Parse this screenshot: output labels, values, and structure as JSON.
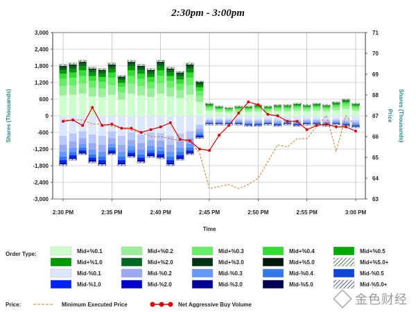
{
  "chart_data": {
    "type": "bar",
    "title": "2:30pm - 3:00pm",
    "xlabel": "Time",
    "ylabel_left": "Shares (Thousands)",
    "ylabel_right_price": "Price",
    "ylabel_right_shares": "Shares (Thousands)",
    "x_ticks": [
      "2:30 PM",
      "2:35 PM",
      "2:40 PM",
      "2:45 PM",
      "2:50 PM",
      "2:55 PM",
      "3:00 PM"
    ],
    "ylim_left": [
      -3000,
      3000
    ],
    "y_ticks_left": [
      "3,000",
      "2,400",
      "1,800",
      "1,200",
      "600",
      "0",
      "-600",
      "-1,200",
      "-1,800",
      "-2,400",
      "-3,000"
    ],
    "ylim_right": [
      63,
      71
    ],
    "y_ticks_right": [
      "71",
      "70",
      "69",
      "68",
      "67",
      "66",
      "65",
      "64",
      "63"
    ],
    "grid": true,
    "minutes": [
      0,
      1,
      2,
      3,
      4,
      5,
      6,
      7,
      8,
      9,
      10,
      11,
      12,
      13,
      14,
      15,
      16,
      17,
      18,
      19,
      20,
      21,
      22,
      23,
      24,
      25,
      26,
      27,
      28,
      29,
      30
    ],
    "buy_volume": [
      1850,
      1900,
      2000,
      1750,
      1700,
      1900,
      1450,
      2000,
      1850,
      1700,
      2000,
      1750,
      1600,
      1900,
      1250,
      450,
      350,
      300,
      350,
      350,
      400,
      350,
      400,
      400,
      450,
      400,
      450,
      400,
      500,
      600,
      450
    ],
    "sell_volume": [
      -1800,
      -1600,
      -1400,
      -1700,
      -1800,
      -1400,
      -1800,
      -1500,
      -1700,
      -1500,
      -1550,
      -1800,
      -1600,
      -1400,
      -800,
      -300,
      -300,
      -300,
      -300,
      -350,
      -350,
      -300,
      -350,
      -300,
      -350,
      -300,
      -300,
      -350,
      -300,
      -350,
      -400
    ],
    "net_aggressive_buy_volume": [
      -200,
      -150,
      -350,
      300,
      -350,
      -300,
      -450,
      -450,
      -600,
      -500,
      -400,
      -250,
      -850,
      -900,
      -1200,
      -1250,
      -700,
      -350,
      100,
      500,
      400,
      50,
      0,
      -200,
      -200,
      -500,
      -350,
      -300,
      -400,
      -400,
      -550
    ],
    "minimum_executed_price": [
      66.8,
      66.8,
      66.8,
      66.6,
      66.6,
      66.5,
      66.4,
      66.3,
      66.2,
      66.0,
      66.0,
      65.9,
      65.8,
      65.8,
      65.2,
      63.5,
      63.6,
      63.7,
      63.5,
      63.7,
      64.0,
      64.8,
      65.6,
      65.5,
      65.9,
      65.9,
      66.5,
      67.0,
      65.3,
      67.0,
      66.5
    ],
    "legend": {
      "order_type_label": "Order Type:",
      "order_types": [
        {
          "label": "Mid+%0.1",
          "color": "#ccffcc"
        },
        {
          "label": "Mid+%0.2",
          "color": "#99ee99"
        },
        {
          "label": "Mid+%0.3",
          "color": "#66ee66"
        },
        {
          "label": "Mid+%0.4",
          "color": "#33dd33"
        },
        {
          "label": "Mid+%0.5",
          "color": "#00aa00"
        },
        {
          "label": "Mid+%1.0",
          "color": "#009900"
        },
        {
          "label": "Mid+%2.0",
          "color": "#006622"
        },
        {
          "label": "Mid+%3.0",
          "color": "#003311"
        },
        {
          "label": "Mid+%5.0",
          "color": "#001a0a"
        },
        {
          "label": "Mid+%5.0+",
          "color": "hatch-green"
        },
        {
          "label": "Mid-%0.1",
          "color": "#dde6ff"
        },
        {
          "label": "Mid-%0.2",
          "color": "#99aaee"
        },
        {
          "label": "Mid-%0.3",
          "color": "#6699ff"
        },
        {
          "label": "Mid-%0.4",
          "color": "#3377ee"
        },
        {
          "label": "Mid-%0.5",
          "color": "#1144dd"
        },
        {
          "label": "Mid-%1.0",
          "color": "#0022ff"
        },
        {
          "label": "Mid-%2.0",
          "color": "#0000cc"
        },
        {
          "label": "Mid-%3.0",
          "color": "#000099"
        },
        {
          "label": "Mid-%5.0",
          "color": "#000055"
        },
        {
          "label": "Mid-%5.0+",
          "color": "hatch-blue"
        }
      ],
      "price_label": "Price:",
      "series": [
        {
          "label": "Minimum Executed Price",
          "color": "#cc7722"
        },
        {
          "label": "Net Aggressive Buy Volume",
          "color": "#dd0000"
        }
      ]
    }
  },
  "watermark": {
    "text": "金色财经"
  }
}
